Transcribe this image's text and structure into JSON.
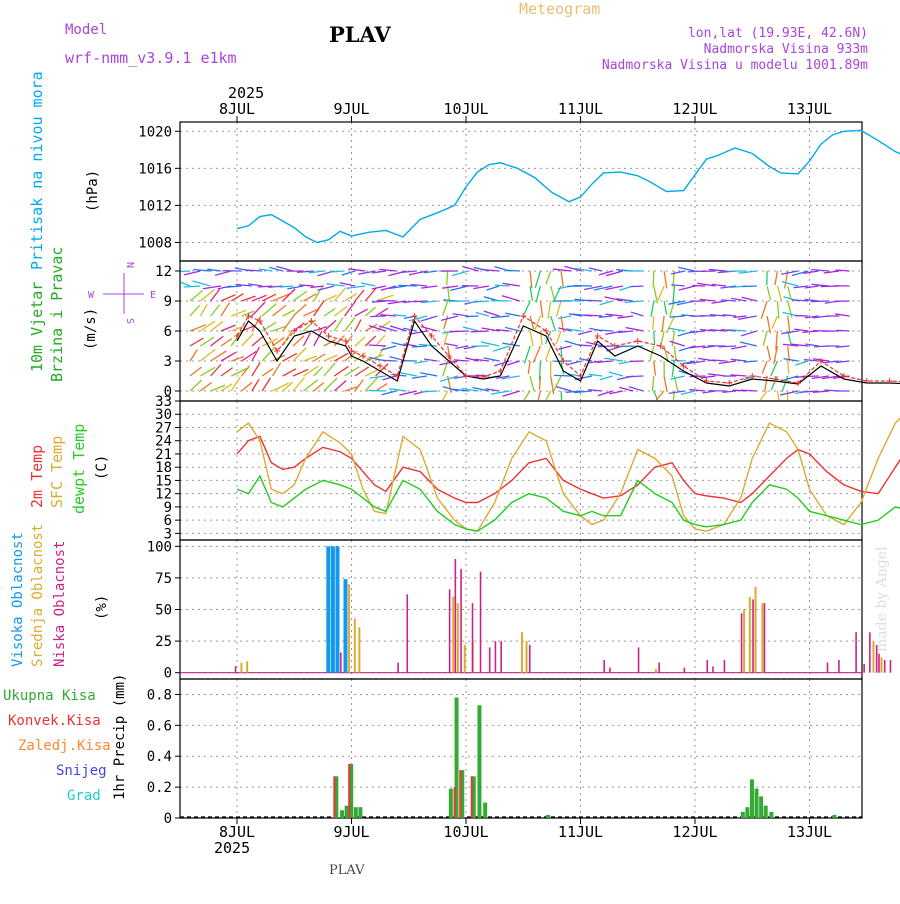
{
  "header": {
    "model_label": "Model",
    "model_name": "wrf-nmm_v3.9.1 e1km",
    "station": "PLAV",
    "product": "Meteogram",
    "lonlat": "lon,lat (19.93E, 42.6N)",
    "elevation": "Nadmorska Visina 933m",
    "model_elevation": "Nadmorska Visina u modelu 1001.89m",
    "footer_station": "PLAV",
    "watermark": "made by Angel"
  },
  "time_axis": {
    "year": "2025",
    "days": [
      "8JUL",
      "9JUL",
      "10JUL",
      "11JUL",
      "12JUL",
      "13JUL"
    ]
  },
  "colors": {
    "pressure": "#00aaee",
    "temp2m": "#ee3333",
    "sfc": "#ddaa33",
    "dewpt": "#22cc22",
    "high_cloud": "#1199ee",
    "mid_cloud": "#ddaa33",
    "low_cloud": "#cc2288",
    "total_precip": "#33aa33",
    "conv_precip": "#ee3333",
    "frozen": "#ff8833",
    "snow": "#4444ee",
    "graupel": "#22cccc",
    "wind_label": "#22aa22",
    "compass": "#aa44dd"
  },
  "chart_data": [
    {
      "type": "line",
      "name": "pressure",
      "ylabel": "Pritisak na nivou mora",
      "unit": "(hPa)",
      "ylim": [
        1006,
        1021
      ],
      "yticks": [
        1008,
        1012,
        1016,
        1020
      ],
      "x_days": [
        0.0,
        0.1,
        0.2,
        0.3,
        0.4,
        0.5,
        0.6,
        0.7,
        0.8,
        0.9,
        1.0,
        1.15,
        1.3,
        1.45,
        1.6,
        1.75,
        1.9,
        2.0,
        2.1,
        2.2,
        2.3,
        2.45,
        2.6,
        2.75,
        2.9,
        3.0,
        3.1,
        3.2,
        3.35,
        3.5,
        3.6,
        3.75,
        3.9,
        4.0,
        4.1,
        4.2,
        4.35,
        4.5,
        4.65,
        4.75,
        4.9,
        5.0,
        5.1,
        5.2,
        5.3,
        5.45,
        5.6,
        5.75,
        5.9,
        6.0
      ],
      "values": [
        1009.5,
        1009.8,
        1010.8,
        1011.0,
        1010.3,
        1009.6,
        1008.6,
        1008.0,
        1008.3,
        1009.2,
        1008.7,
        1009.1,
        1009.3,
        1008.6,
        1010.5,
        1011.2,
        1012.0,
        1014.0,
        1015.6,
        1016.4,
        1016.6,
        1016.0,
        1015.0,
        1013.4,
        1012.4,
        1012.9,
        1014.3,
        1015.5,
        1015.6,
        1015.2,
        1014.6,
        1013.5,
        1013.6,
        1015.3,
        1017.0,
        1017.4,
        1018.2,
        1017.6,
        1016.2,
        1015.5,
        1015.4,
        1016.8,
        1018.6,
        1019.6,
        1020.0,
        1020.1,
        1019.0,
        1017.8,
        1017.0,
        1016.9
      ]
    },
    {
      "type": "vector",
      "name": "wind",
      "ylabel": [
        "10m Vjetar",
        "Brzina i Pravac"
      ],
      "unit": "(m/s)",
      "ylim": [
        -1,
        13
      ],
      "yticks": [
        0,
        3,
        6,
        9,
        12
      ],
      "compass": {
        "n": "N",
        "s": "S",
        "w": "W",
        "e": "E"
      },
      "x_days": [
        0.0,
        0.1,
        0.2,
        0.35,
        0.5,
        0.65,
        0.8,
        0.95,
        1.0,
        1.1,
        1.25,
        1.4,
        1.55,
        1.7,
        1.85,
        2.0,
        2.15,
        2.3,
        2.5,
        2.7,
        2.85,
        3.0,
        3.15,
        3.3,
        3.5,
        3.7,
        3.9,
        4.1,
        4.3,
        4.5,
        4.7,
        4.9,
        5.1,
        5.3,
        5.5,
        5.7,
        5.9,
        6.0
      ],
      "speed": [
        5.0,
        7.0,
        6.0,
        3.0,
        5.5,
        6.0,
        5.0,
        4.5,
        3.5,
        3.0,
        2.0,
        1.0,
        7.0,
        4.5,
        3.0,
        1.5,
        1.2,
        1.5,
        6.5,
        5.5,
        2.0,
        1.0,
        5.0,
        3.5,
        4.5,
        3.5,
        2.0,
        0.8,
        0.5,
        1.2,
        1.0,
        0.7,
        2.5,
        1.2,
        0.8,
        0.8,
        0.7,
        0.9
      ],
      "gust": [
        5.5,
        7.5,
        7.0,
        4.0,
        6.0,
        7.0,
        5.5,
        5.0,
        4.0,
        3.5,
        2.5,
        1.5,
        7.5,
        5.5,
        3.5,
        1.5,
        1.4,
        2.0,
        7.5,
        6.0,
        3.0,
        1.5,
        5.5,
        4.5,
        5.0,
        4.5,
        2.5,
        1.0,
        0.8,
        1.5,
        1.2,
        0.8,
        3.0,
        1.5,
        1.0,
        1.0,
        0.9,
        1.0
      ]
    },
    {
      "type": "line",
      "name": "temperature",
      "ylabel": [
        "2m Temp",
        "SFC Temp",
        "dewpt Temp"
      ],
      "unit": "(C)",
      "ylim": [
        1.5,
        33
      ],
      "yticks": [
        3,
        6,
        9,
        12,
        15,
        18,
        21,
        24,
        27,
        30,
        33
      ],
      "series": [
        {
          "name": "2m Temp",
          "x_days": [
            0.0,
            0.1,
            0.2,
            0.3,
            0.4,
            0.5,
            0.6,
            0.75,
            0.9,
            1.0,
            1.1,
            1.2,
            1.3,
            1.45,
            1.6,
            1.75,
            1.9,
            2.0,
            2.1,
            2.25,
            2.4,
            2.55,
            2.7,
            2.85,
            3.0,
            3.1,
            3.2,
            3.35,
            3.5,
            3.65,
            3.8,
            3.9,
            4.0,
            4.1,
            4.25,
            4.4,
            4.5,
            4.65,
            4.8,
            4.9,
            5.0,
            5.15,
            5.3,
            5.45,
            5.6,
            5.75,
            5.9,
            6.0
          ],
          "values": [
            21,
            24,
            25,
            19,
            17.5,
            18,
            20,
            22.5,
            21.5,
            20,
            17,
            14,
            12.5,
            18,
            17,
            13,
            11,
            10,
            10,
            12,
            15,
            19,
            20,
            15,
            13,
            12,
            11,
            11.5,
            14,
            18,
            19,
            15,
            12,
            11.5,
            11,
            10,
            12,
            16,
            20,
            22,
            21,
            17,
            14,
            12.5,
            12,
            18,
            24,
            26
          ]
        },
        {
          "name": "SFC Temp",
          "x_days": [
            0.0,
            0.1,
            0.2,
            0.3,
            0.4,
            0.5,
            0.6,
            0.75,
            0.9,
            1.0,
            1.1,
            1.2,
            1.3,
            1.45,
            1.6,
            1.75,
            1.9,
            2.0,
            2.1,
            2.25,
            2.4,
            2.55,
            2.7,
            2.85,
            3.0,
            3.1,
            3.2,
            3.35,
            3.5,
            3.65,
            3.8,
            3.9,
            4.0,
            4.1,
            4.25,
            4.4,
            4.5,
            4.65,
            4.8,
            4.9,
            5.0,
            5.15,
            5.3,
            5.45,
            5.6,
            5.75,
            5.9,
            6.0
          ],
          "values": [
            26,
            28,
            24,
            13,
            12,
            14,
            20,
            26,
            23.5,
            21,
            13,
            8,
            7.5,
            25,
            22,
            11,
            6,
            4,
            3.5,
            10,
            20,
            26,
            24,
            12,
            7,
            5,
            6,
            12,
            22,
            20,
            16,
            7,
            4,
            3.5,
            5,
            11,
            20,
            28,
            26,
            22,
            13,
            7,
            5,
            10,
            20,
            28,
            32,
            33
          ]
        },
        {
          "name": "dewpt Temp",
          "x_days": [
            0.0,
            0.1,
            0.2,
            0.3,
            0.4,
            0.5,
            0.6,
            0.75,
            0.9,
            1.0,
            1.1,
            1.2,
            1.3,
            1.45,
            1.6,
            1.75,
            1.9,
            2.0,
            2.1,
            2.25,
            2.4,
            2.55,
            2.7,
            2.85,
            3.0,
            3.1,
            3.2,
            3.35,
            3.5,
            3.65,
            3.8,
            3.9,
            4.0,
            4.1,
            4.25,
            4.4,
            4.5,
            4.65,
            4.8,
            4.9,
            5.0,
            5.15,
            5.3,
            5.45,
            5.6,
            5.75,
            5.9,
            6.0
          ],
          "values": [
            13,
            12,
            16,
            10,
            9,
            11,
            13,
            15,
            14,
            13,
            11,
            9,
            8,
            15,
            13,
            8,
            5,
            4,
            3.5,
            6,
            10,
            12,
            11,
            8,
            7,
            8,
            7,
            7,
            15,
            12,
            10,
            6,
            5,
            4.5,
            5,
            6,
            10,
            14,
            13,
            11,
            8,
            7,
            6,
            5,
            6,
            9,
            8,
            10
          ]
        }
      ]
    },
    {
      "type": "bar",
      "name": "cloud",
      "ylabel": [
        "Visoka Oblacnost",
        "Srednja Oblacnost",
        "Niska Oblacnost"
      ],
      "unit": "(%)",
      "ylim": [
        -5,
        105
      ],
      "yticks": [
        0,
        25,
        50,
        75,
        100
      ],
      "series": [
        {
          "name": "Visoka Oblacnost",
          "x_days": [
            0.78,
            0.82,
            0.86,
            0.93
          ],
          "values": [
            100,
            100,
            100,
            74
          ]
        },
        {
          "name": "Srednja Oblacnost",
          "x_days": [
            0.03,
            0.08,
            0.97,
            1.02,
            1.06,
            1.88,
            1.92,
            1.98,
            2.05,
            2.48,
            2.52,
            3.65,
            4.42,
            4.47,
            4.52,
            4.58,
            5.55,
            5.62
          ],
          "values": [
            8,
            9,
            70,
            43,
            36,
            60,
            55,
            22,
            24,
            32,
            25,
            3,
            50,
            60,
            68,
            55,
            25,
            12
          ]
        },
        {
          "name": "Niska Oblacnost",
          "x_days": [
            -0.02,
            0.9,
            1.4,
            1.48,
            1.85,
            1.9,
            1.95,
            2.05,
            2.12,
            2.2,
            2.25,
            2.3,
            2.55,
            3.2,
            3.25,
            3.5,
            3.68,
            3.9,
            4.1,
            4.15,
            4.25,
            4.4,
            4.5,
            4.6,
            5.15,
            5.25,
            5.4,
            5.47,
            5.52,
            5.58,
            5.6,
            5.65,
            5.7,
            5.9,
            5.95
          ],
          "values": [
            5,
            16,
            8,
            62,
            66,
            90,
            82,
            55,
            80,
            20,
            25,
            25,
            22,
            10,
            4,
            20,
            8,
            4,
            10,
            5,
            10,
            47,
            58,
            55,
            8,
            10,
            32,
            7,
            32,
            22,
            15,
            10,
            10,
            58,
            58
          ]
        }
      ]
    },
    {
      "type": "bar",
      "name": "precipitation",
      "ylabel": [
        "Ukupna Kisa",
        "Konvek.Kisa",
        "Zaledj.Kisa",
        "Snijeg",
        "Grad"
      ],
      "unit": "1hr Precip (mm)",
      "ylim": [
        0,
        0.9
      ],
      "yticks": [
        0,
        0.2,
        0.4,
        0.6,
        0.8
      ],
      "series": [
        {
          "name": "Ukupna Kisa",
          "x_days": [
            0.85,
            0.9,
            0.94,
            0.98,
            1.02,
            1.06,
            1.85,
            1.9,
            1.95,
            2.05,
            2.1,
            2.15,
            2.7,
            4.4,
            4.44,
            4.48,
            4.52,
            4.56,
            4.6,
            4.65,
            5.2
          ],
          "values": [
            0.27,
            0.05,
            0.08,
            0.35,
            0.07,
            0.07,
            0.19,
            0.78,
            0.31,
            0.27,
            0.73,
            0.1,
            0.02,
            0.04,
            0.07,
            0.25,
            0.19,
            0.14,
            0.08,
            0.04,
            0.02
          ]
        },
        {
          "name": "Konvek.Kisa",
          "x_days": [
            0.85,
            0.98,
            1.9,
            1.95,
            2.05
          ],
          "values": [
            0.27,
            0.35,
            0.2,
            0.31,
            0.27
          ]
        }
      ]
    }
  ]
}
